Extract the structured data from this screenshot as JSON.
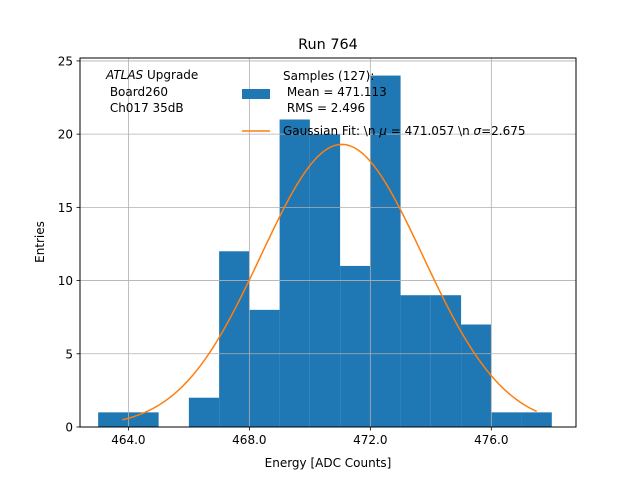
{
  "chart_data": {
    "type": "bar",
    "title": "Run 764",
    "xlabel": "Energy [ADC Counts]",
    "ylabel": "Entries",
    "xlim": [
      462.4,
      478.8
    ],
    "ylim": [
      0,
      25.2
    ],
    "grid": true,
    "x_ticks": [
      464,
      468,
      472,
      476
    ],
    "x_tick_labels": [
      "464.0",
      "468.0",
      "472.0",
      "476.0"
    ],
    "y_ticks": [
      0,
      5,
      10,
      15,
      20,
      25
    ],
    "y_tick_labels": [
      "0",
      "5",
      "10",
      "15",
      "20",
      "25"
    ],
    "histogram": {
      "bin_edges": [
        463,
        464,
        465,
        466,
        467,
        468,
        469,
        470,
        471,
        472,
        473,
        474,
        475,
        476,
        477,
        478
      ],
      "counts": [
        1,
        1,
        0,
        2,
        12,
        8,
        21,
        20,
        11,
        24,
        9,
        9,
        7,
        1,
        1
      ],
      "color": "#1f77b4"
    },
    "fit": {
      "mu": 471.057,
      "sigma": 2.675,
      "amplitude": 19.3,
      "x_range": [
        463.8,
        477.5
      ],
      "color": "#ff7f0e"
    },
    "annotation": {
      "line1_italic": "ATLAS",
      "line1_rest": " Upgrade",
      "line2": " Board260",
      "line3": " Ch017 35dB"
    },
    "legend": {
      "placement": "top-right",
      "hist_line1": "Samples (127):",
      "hist_line2": " Mean = 471.113",
      "hist_line3": " RMS = 2.496",
      "fit_prefix": "Gaussian Fit: \\n ",
      "mu_symbol": "μ",
      "fit_mid": " = 471.057 \\n ",
      "sigma_symbol": "σ",
      "fit_suffix": "=2.675"
    }
  }
}
